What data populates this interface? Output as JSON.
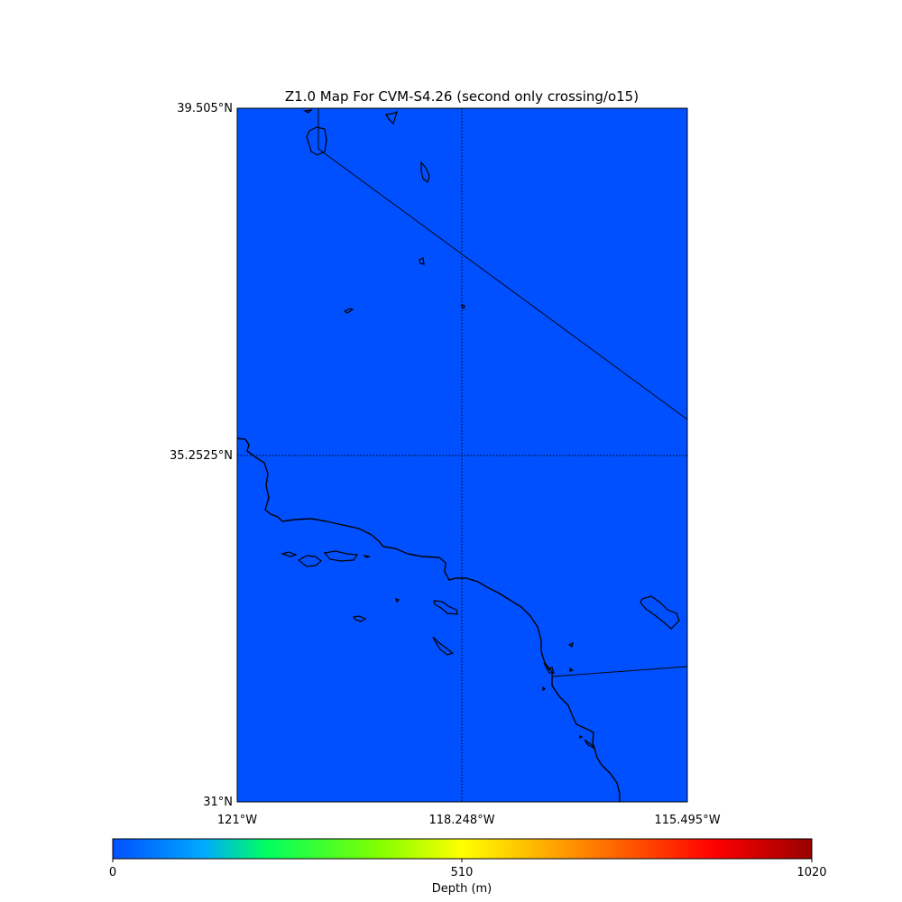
{
  "map": {
    "title": "Z1.0 Map For CVM-S4.26 (second only crossing/o15)",
    "background_color": "#0050ff",
    "extent": {
      "lon_min": -121,
      "lon_max": -115.495,
      "lat_min": 31,
      "lat_max": 39.505
    },
    "lat_ticks": [
      {
        "value": 39.505,
        "label": "39.505°N"
      },
      {
        "value": 35.2525,
        "label": "35.2525°N"
      },
      {
        "value": 31,
        "label": "31°N"
      }
    ],
    "lon_ticks": [
      {
        "value": -121,
        "label": "121°W"
      },
      {
        "value": -118.248,
        "label": "118.248°W"
      },
      {
        "value": -115.495,
        "label": "115.495°W"
      }
    ],
    "gridlines": "dotted",
    "features": [
      "coastline",
      "islands",
      "state-borders",
      "country-border"
    ]
  },
  "colorbar": {
    "label": "Depth (m)",
    "min": 0,
    "max": 1020,
    "ticks": [
      {
        "value": 0,
        "label": "0"
      },
      {
        "value": 510,
        "label": "510"
      },
      {
        "value": 1020,
        "label": "1020"
      }
    ],
    "colormap": [
      "#0050ff",
      "#00ff60",
      "#ffff00",
      "#ff8000",
      "#ff0000",
      "#990000"
    ]
  }
}
